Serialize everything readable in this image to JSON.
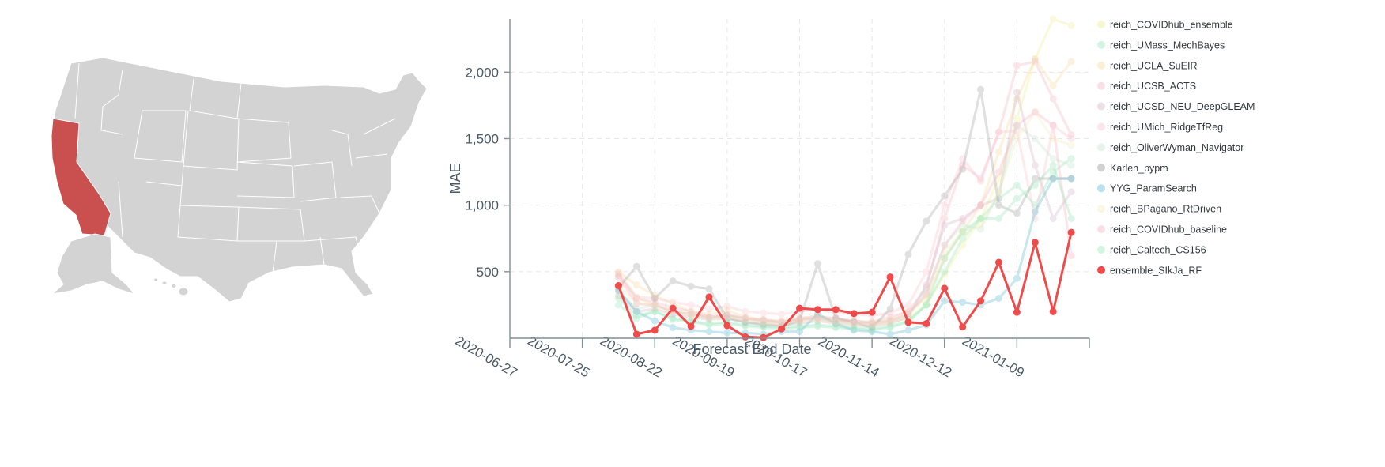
{
  "map": {
    "highlighted_state": "California",
    "base_color": "#d3d3d3",
    "highlight_color": "#c9504f"
  },
  "chart_data": {
    "type": "line",
    "xlabel": "Forecast End Date",
    "ylabel": "MAE",
    "xlim": [
      "2020-06-27",
      "2021-02-06"
    ],
    "ylim": [
      0,
      2400
    ],
    "x_ticks": [
      "2020-06-27",
      "2020-07-25",
      "2020-08-22",
      "2020-09-19",
      "2020-10-17",
      "2020-11-14",
      "2020-12-12",
      "2021-01-09"
    ],
    "y_ticks": [
      500,
      1000,
      1500,
      2000
    ],
    "y_tick_labels": [
      "500",
      "1,000",
      "1,500",
      "2,000"
    ],
    "grid": true,
    "legend_position": "right",
    "x": [
      "2020-08-08",
      "2020-08-15",
      "2020-08-22",
      "2020-08-29",
      "2020-09-05",
      "2020-09-12",
      "2020-09-19",
      "2020-09-26",
      "2020-10-03",
      "2020-10-10",
      "2020-10-17",
      "2020-10-24",
      "2020-10-31",
      "2020-11-07",
      "2020-11-14",
      "2020-11-21",
      "2020-11-28",
      "2020-12-05",
      "2020-12-12",
      "2020-12-19",
      "2020-12-26",
      "2021-01-02",
      "2021-01-09",
      "2021-01-16",
      "2021-01-23",
      "2021-01-30"
    ],
    "series": [
      {
        "name": "reich_COVIDhub_ensemble",
        "color": "#f2ee9a",
        "opacity": 0.35,
        "values": [
          480,
          300,
          250,
          200,
          180,
          150,
          170,
          140,
          120,
          110,
          130,
          150,
          120,
          110,
          100,
          120,
          150,
          250,
          480,
          700,
          900,
          1200,
          1650,
          2100,
          2400,
          2350
        ]
      },
      {
        "name": "reich_UMass_MechBayes",
        "color": "#9de8be",
        "opacity": 0.35,
        "values": [
          250,
          150,
          200,
          140,
          120,
          100,
          110,
          90,
          80,
          70,
          80,
          90,
          80,
          70,
          60,
          80,
          120,
          250,
          500,
          750,
          900,
          1050,
          1150,
          1000,
          1250,
          1350
        ]
      },
      {
        "name": "reich_UCLA_SuEIR",
        "color": "#f7dca0",
        "opacity": 0.35,
        "values": [
          500,
          400,
          320,
          260,
          200,
          180,
          210,
          160,
          140,
          130,
          150,
          170,
          140,
          130,
          120,
          140,
          200,
          300,
          600,
          800,
          1000,
          1400,
          1800,
          2100,
          1900,
          2080
        ]
      },
      {
        "name": "reich_UCSB_ACTS",
        "color": "#f4b8c6",
        "opacity": 0.35,
        "values": [
          470,
          300,
          270,
          230,
          200,
          160,
          180,
          150,
          140,
          120,
          150,
          160,
          150,
          130,
          120,
          160,
          200,
          380,
          900,
          1300,
          1200,
          1550,
          2050,
          2080,
          1800,
          1530
        ]
      },
      {
        "name": "reich_UCSD_NEU_DeepGLEAM",
        "color": "#d7b8c8",
        "opacity": 0.35,
        "values": [
          320,
          200,
          220,
          180,
          160,
          140,
          150,
          120,
          110,
          100,
          110,
          130,
          110,
          100,
          90,
          110,
          160,
          400,
          850,
          900,
          1000,
          1050,
          1850,
          1300,
          900,
          1100
        ]
      },
      {
        "name": "reich_UMich_RidgeTfReg",
        "color": "#fbc8cf",
        "opacity": 0.35,
        "values": [
          490,
          310,
          300,
          270,
          250,
          220,
          240,
          200,
          190,
          180,
          200,
          220,
          190,
          180,
          170,
          190,
          250,
          500,
          1000,
          1350,
          1180,
          1550,
          1560,
          900,
          1600,
          1500
        ]
      },
      {
        "name": "reich_OliverWyman_Navigator",
        "color": "#c8e6cf",
        "opacity": 0.35,
        "values": [
          350,
          220,
          250,
          200,
          180,
          150,
          170,
          140,
          130,
          120,
          140,
          150,
          130,
          120,
          110,
          130,
          180,
          350,
          700,
          850,
          820,
          1100,
          1600,
          1500,
          1350,
          1300
        ]
      },
      {
        "name": "Karlen_pypm",
        "color": "#9a9a9a",
        "opacity": 0.3,
        "values": [
          380,
          540,
          300,
          430,
          390,
          370,
          150,
          120,
          100,
          90,
          130,
          560,
          150,
          120,
          80,
          220,
          630,
          880,
          1070,
          1270,
          1870,
          1000,
          940,
          1200,
          1200,
          1200
        ]
      },
      {
        "name": "YYG_ParamSearch",
        "color": "#66bcd4",
        "opacity": 0.35,
        "values": [
          360,
          200,
          130,
          80,
          60,
          50,
          40,
          40,
          30,
          50,
          50,
          180,
          110,
          60,
          50,
          30,
          60,
          100,
          280,
          270,
          250,
          300,
          450,
          950,
          1200,
          1200
        ]
      },
      {
        "name": "reich_BPagano_RtDriven",
        "color": "#f3edc0",
        "opacity": 0.35,
        "values": [
          400,
          260,
          240,
          200,
          170,
          150,
          160,
          140,
          120,
          110,
          130,
          140,
          120,
          110,
          100,
          120,
          170,
          320,
          650,
          800,
          850,
          1100,
          1500,
          1700,
          1500,
          1450
        ]
      },
      {
        "name": "reich_COVIDhub_baseline",
        "color": "#f7b8c8",
        "opacity": 0.35,
        "values": [
          460,
          260,
          250,
          200,
          180,
          160,
          170,
          150,
          130,
          120,
          140,
          150,
          130,
          120,
          110,
          130,
          180,
          330,
          700,
          880,
          1000,
          1250,
          1600,
          1700,
          1600,
          620
        ]
      },
      {
        "name": "reich_Caltech_CS156",
        "color": "#99e8b8",
        "opacity": 0.35,
        "values": [
          300,
          170,
          200,
          150,
          130,
          110,
          120,
          100,
          90,
          80,
          90,
          100,
          90,
          80,
          70,
          90,
          130,
          250,
          600,
          800,
          900,
          900,
          1050,
          1150,
          1300,
          900
        ]
      },
      {
        "name": "ensemble_SIkJa_RF",
        "color": "#ef4b4b",
        "opacity": 1,
        "values": [
          395,
          30,
          60,
          225,
          90,
          310,
          95,
          10,
          5,
          70,
          225,
          215,
          215,
          185,
          195,
          460,
          120,
          110,
          375,
          85,
          280,
          570,
          195,
          720,
          200,
          795
        ]
      }
    ]
  }
}
